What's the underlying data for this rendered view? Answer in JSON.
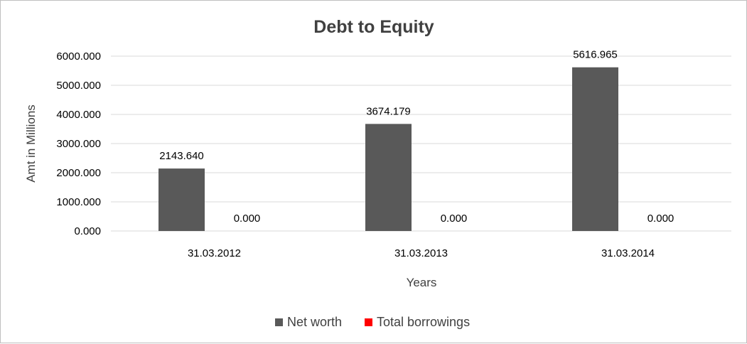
{
  "chart_data": {
    "type": "bar",
    "title": "Debt to Equity",
    "xlabel": "Years",
    "ylabel": "Amt in Millions",
    "categories": [
      "31.03.2012",
      "31.03.2013",
      "31.03.2014"
    ],
    "series": [
      {
        "name": "Net worth",
        "values": [
          2143.64,
          3674.179,
          5616.965
        ],
        "labels": [
          "2143.640",
          "3674.179",
          "5616.965"
        ],
        "color": "#595959"
      },
      {
        "name": "Total borrowings",
        "values": [
          0.0,
          0.0,
          0.0
        ],
        "labels": [
          "0.000",
          "0.000",
          "0.000"
        ],
        "color": "#ff0000"
      }
    ],
    "ylim": [
      0,
      6000
    ],
    "yticks": [
      0,
      1000,
      2000,
      3000,
      4000,
      5000,
      6000
    ],
    "ytick_labels": [
      "0.000",
      "1000.000",
      "2000.000",
      "3000.000",
      "4000.000",
      "5000.000",
      "6000.000"
    ],
    "grid": true,
    "legend_position": "bottom"
  }
}
